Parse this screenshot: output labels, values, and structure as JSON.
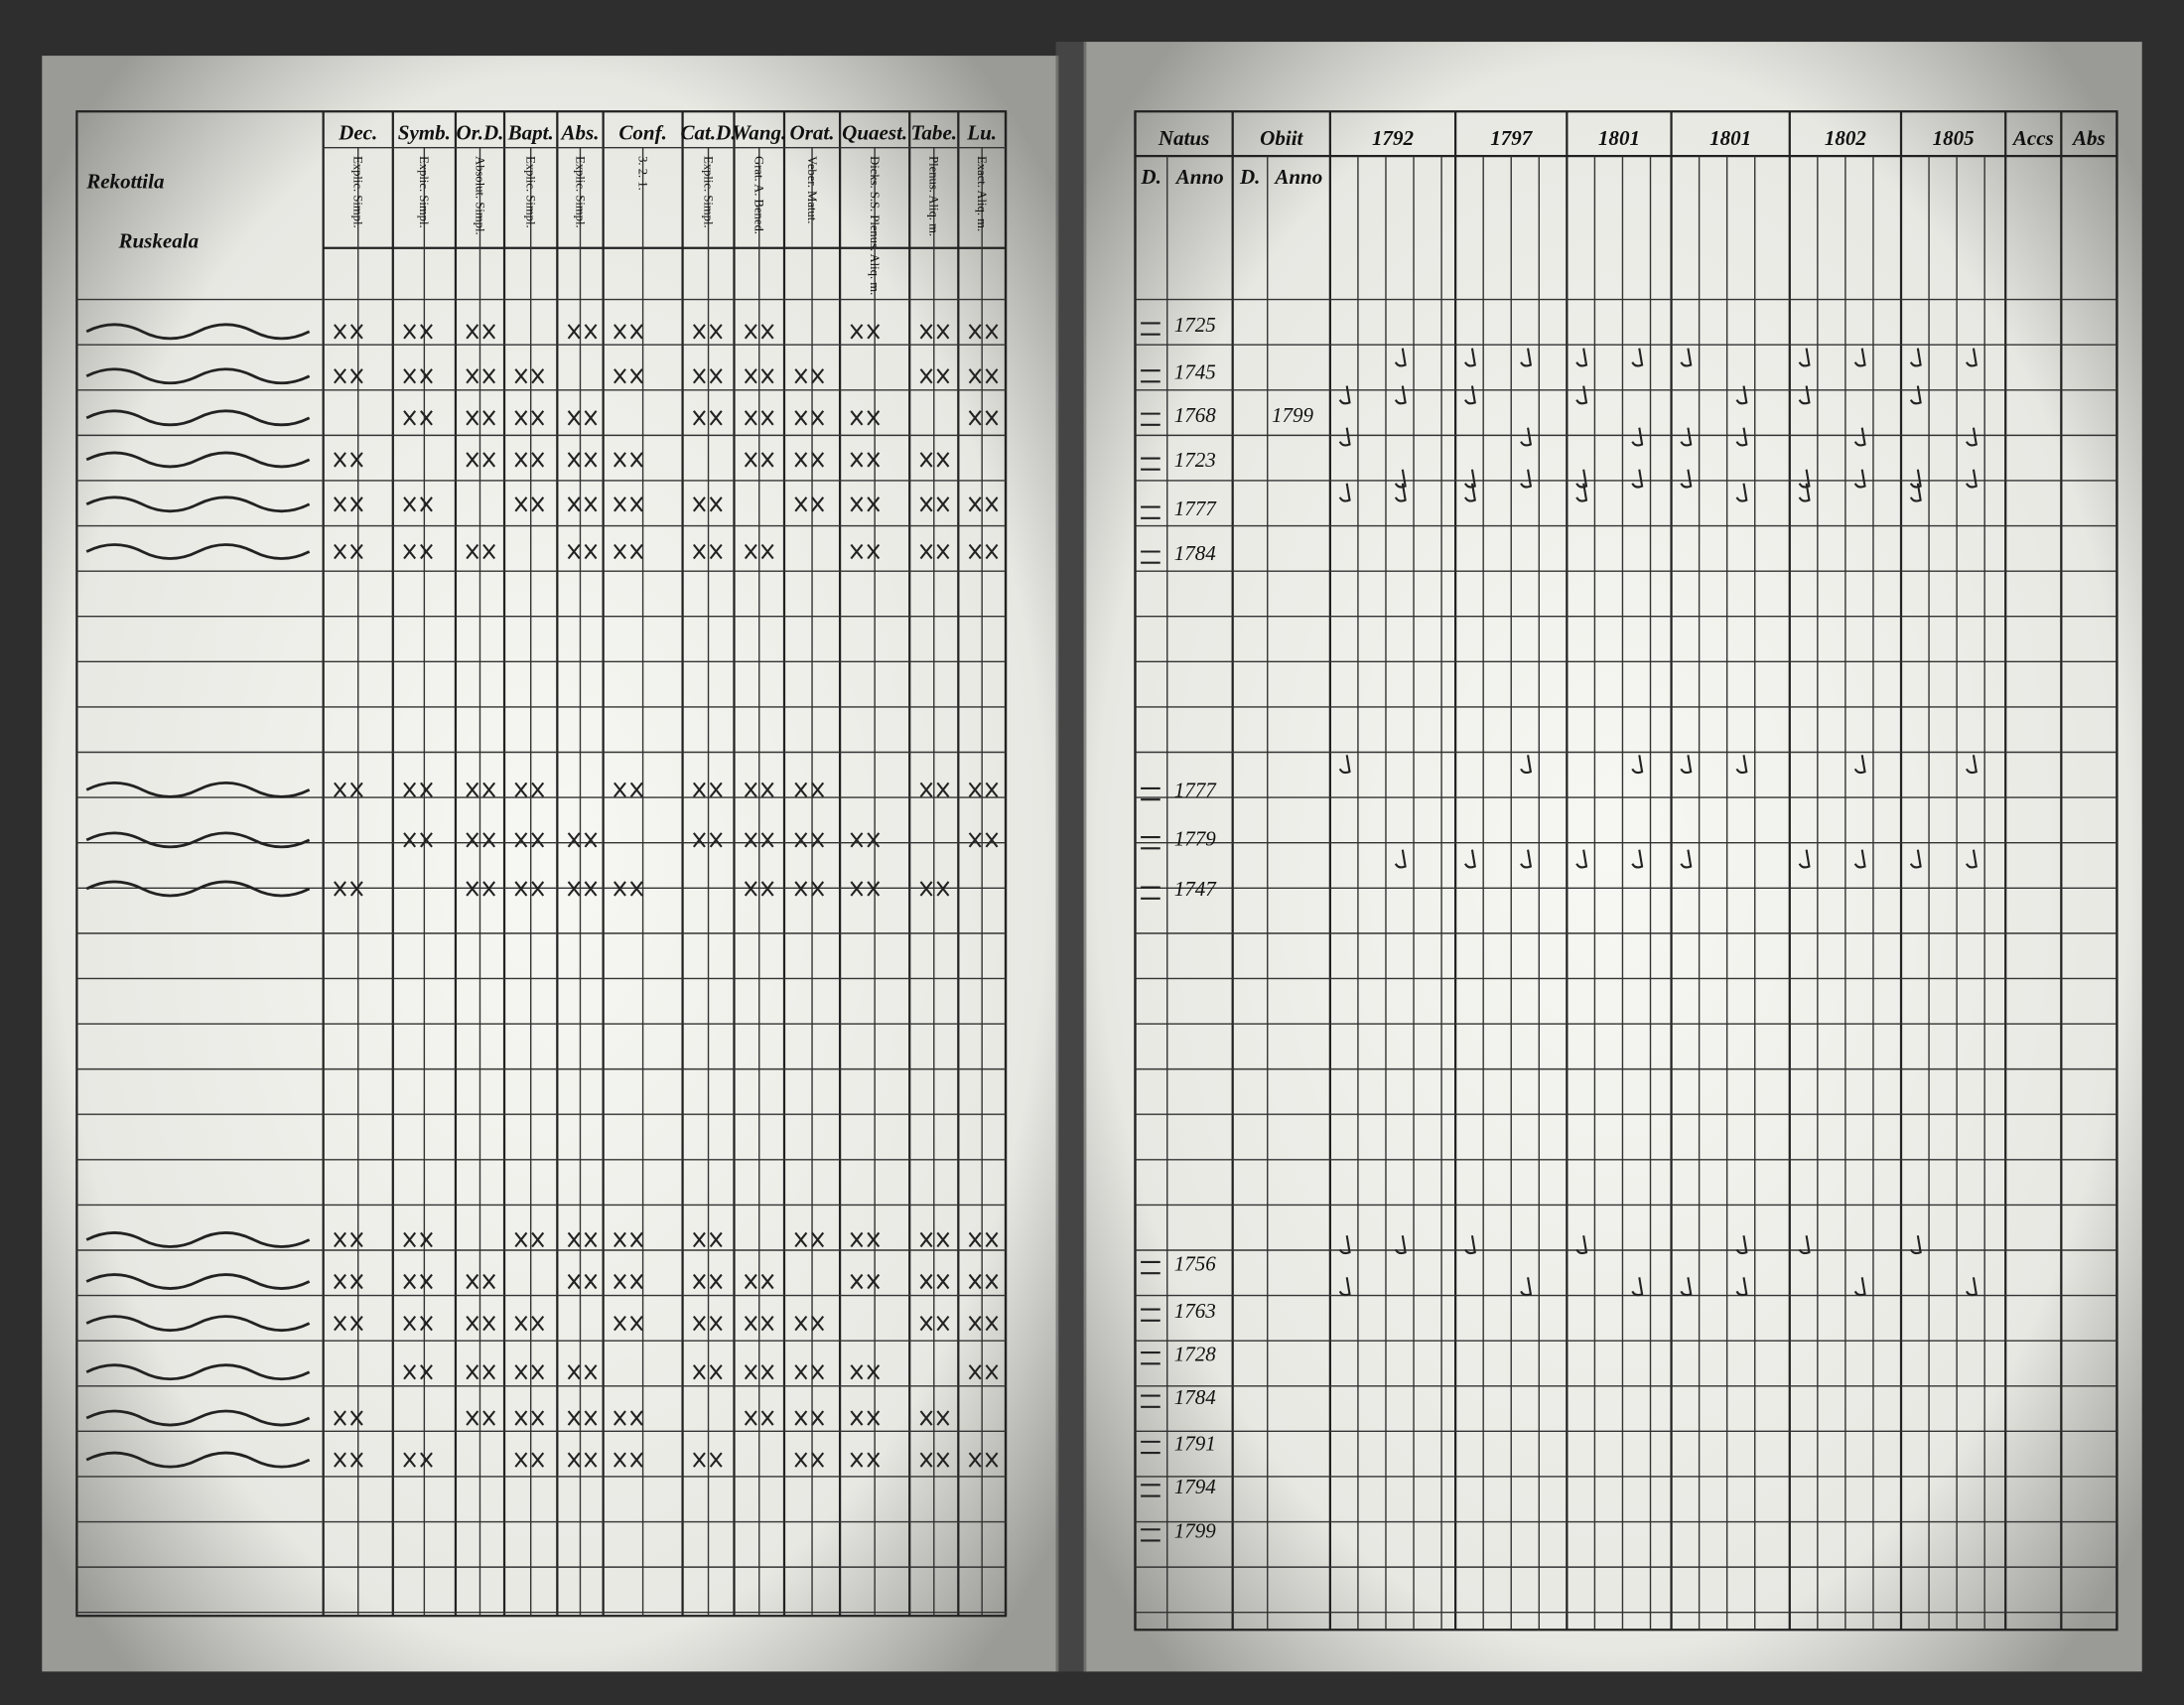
{
  "left_page": {
    "heading": "Rekottila",
    "subheading": "Ruskeala",
    "columns": [
      {
        "label": "Dec.",
        "sub": "Explic. Simpl."
      },
      {
        "label": "Symb.",
        "sub": "Explic. Simpl."
      },
      {
        "label": "Or.D.",
        "sub": "Absolut. Simpl."
      },
      {
        "label": "Bapt.",
        "sub": "Explic. Simpl."
      },
      {
        "label": "Abs.",
        "sub": "Explic. Simpl."
      },
      {
        "label": "Conf.",
        "sub": "3. 2. 1."
      },
      {
        "label": "Cat.D.",
        "sub": "Explic. Simpl."
      },
      {
        "label": "Wang.",
        "sub": "Grat. A. Bened."
      },
      {
        "label": "Orat.",
        "sub": "Veber. Matut."
      },
      {
        "label": "Quaest.",
        "sub": "Dicks. S.S. Plenus. Aliq. m."
      },
      {
        "label": "Tabe.",
        "sub": "Plenus. Aliq. m."
      },
      {
        "label": "Lu.",
        "sub": "Exact. Aliq. m."
      }
    ]
  },
  "right_page": {
    "columns": [
      "Natus",
      "Obiit",
      "1792",
      "1797",
      "1801",
      "1801",
      "1802",
      "1805",
      "Accs",
      "Abs"
    ],
    "sub_columns": [
      "D.",
      "Anno",
      "D.",
      "Anno"
    ],
    "birth_years": [
      "1725",
      "1745",
      "1768",
      "1723",
      "1777",
      "1784",
      "1777",
      "1779",
      "1747",
      "1756",
      "1763",
      "1728",
      "1784",
      "1791",
      "1794",
      "1799"
    ],
    "death_years": [
      "1799"
    ]
  }
}
